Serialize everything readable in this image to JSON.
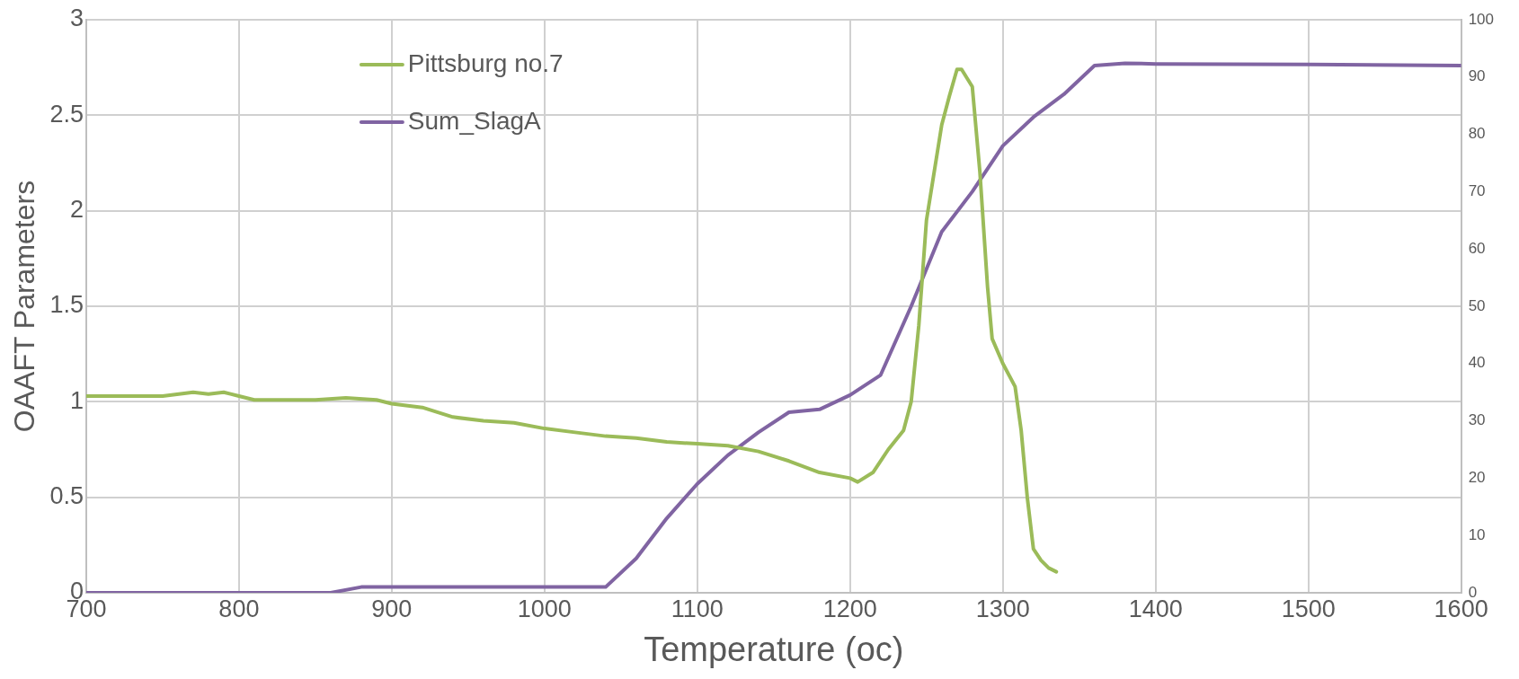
{
  "chart_data": {
    "type": "line",
    "xlabel": "Temperature (oc)",
    "ylabel": "OAAFT Parameters",
    "xlim": [
      700,
      1600
    ],
    "xticks": [
      700,
      800,
      900,
      1000,
      1100,
      1200,
      1300,
      1400,
      1500,
      1600
    ],
    "ylim": [
      0,
      3
    ],
    "yticks": [
      0,
      0.5,
      1,
      1.5,
      2,
      2.5,
      3
    ],
    "y2lim": [
      0,
      100
    ],
    "y2ticks": [
      0,
      10,
      20,
      30,
      40,
      50,
      60,
      70,
      80,
      90,
      100
    ],
    "grid": true,
    "legend": "top left",
    "marker": "none",
    "line_style": "solid",
    "series": [
      {
        "name": "Pittsburg no.7",
        "color": "#9bbb59",
        "x": [
          700,
          750,
          770,
          780,
          790,
          800,
          810,
          850,
          870,
          890,
          900,
          920,
          940,
          960,
          980,
          1000,
          1020,
          1040,
          1060,
          1080,
          1100,
          1120,
          1140,
          1160,
          1180,
          1200,
          1205,
          1215,
          1225,
          1235,
          1240,
          1245,
          1250,
          1255,
          1260,
          1265,
          1270,
          1273,
          1280,
          1285,
          1290,
          1293,
          1300,
          1308,
          1312,
          1316,
          1320,
          1325,
          1330,
          1335
        ],
        "values": [
          1.03,
          1.03,
          1.05,
          1.04,
          1.05,
          1.03,
          1.01,
          1.01,
          1.02,
          1.01,
          0.99,
          0.97,
          0.92,
          0.9,
          0.89,
          0.86,
          0.84,
          0.82,
          0.81,
          0.79,
          0.78,
          0.77,
          0.74,
          0.69,
          0.63,
          0.6,
          0.58,
          0.63,
          0.75,
          0.85,
          1.0,
          1.4,
          1.95,
          2.2,
          2.45,
          2.6,
          2.74,
          2.74,
          2.65,
          2.2,
          1.6,
          1.33,
          1.2,
          1.08,
          0.85,
          0.5,
          0.23,
          0.17,
          0.13,
          0.11
        ]
      },
      {
        "name": "Sum_SlagA",
        "color": "#8064a2",
        "axis": "y2",
        "x": [
          700,
          860,
          880,
          1040,
          1060,
          1080,
          1100,
          1120,
          1140,
          1160,
          1180,
          1200,
          1220,
          1240,
          1260,
          1280,
          1300,
          1320,
          1340,
          1360,
          1380,
          1400,
          1500,
          1600
        ],
        "values": [
          0,
          0,
          1,
          1,
          6,
          13,
          19,
          24,
          28,
          31.5,
          32,
          34.5,
          38,
          50,
          63,
          70,
          78,
          83,
          87,
          92,
          92.4,
          92.3,
          92.2,
          92
        ]
      }
    ]
  }
}
